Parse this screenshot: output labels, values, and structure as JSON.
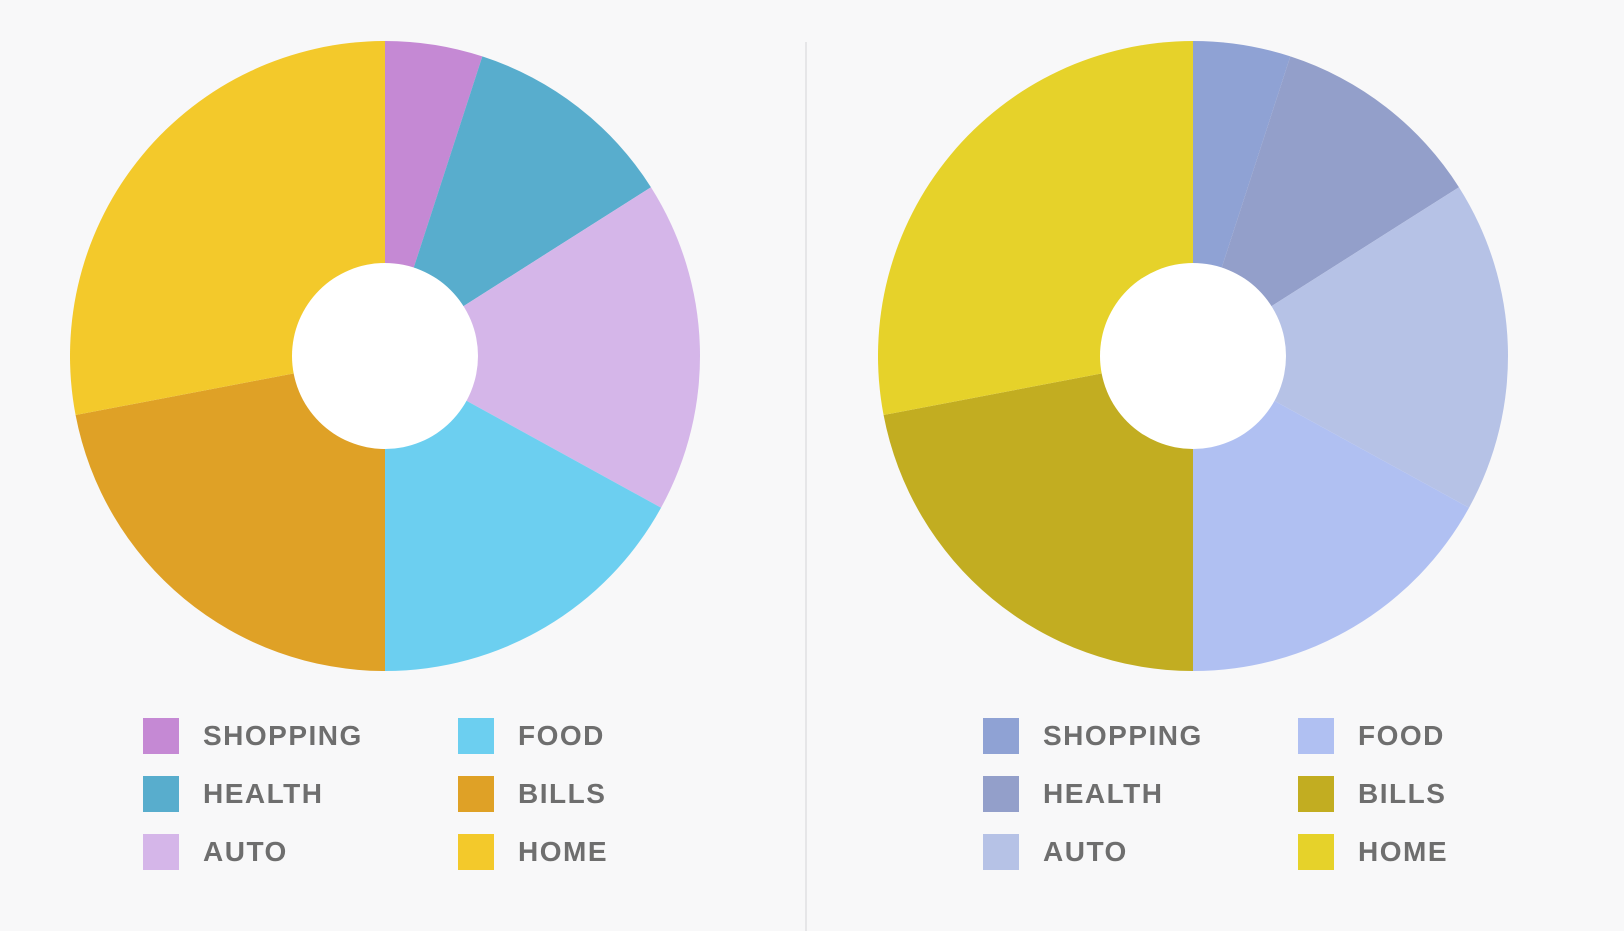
{
  "chart_data": [
    {
      "type": "pie",
      "style": "donut",
      "slices": [
        {
          "label": "SHOPPING",
          "value": 5,
          "color": "#c589d4"
        },
        {
          "label": "HEALTH",
          "value": 11,
          "color": "#58adcd"
        },
        {
          "label": "AUTO",
          "value": 17,
          "color": "#d5b6e9"
        },
        {
          "label": "FOOD",
          "value": 17,
          "color": "#6ccff0"
        },
        {
          "label": "BILLS",
          "value": 22,
          "color": "#dfa126"
        },
        {
          "label": "HOME",
          "value": 28,
          "color": "#f3c92b"
        }
      ],
      "legend": {
        "placement": "bottom",
        "columns": [
          [
            "SHOPPING",
            "HEALTH",
            "AUTO"
          ],
          [
            "FOOD",
            "BILLS",
            "HOME"
          ]
        ]
      }
    },
    {
      "type": "pie",
      "style": "donut",
      "slices": [
        {
          "label": "SHOPPING",
          "value": 5,
          "color": "#8fa2d4"
        },
        {
          "label": "HEALTH",
          "value": 11,
          "color": "#939fca"
        },
        {
          "label": "AUTO",
          "value": 17,
          "color": "#b6c2e6"
        },
        {
          "label": "FOOD",
          "value": 17,
          "color": "#b0c0f2"
        },
        {
          "label": "BILLS",
          "value": 22,
          "color": "#c2ad21"
        },
        {
          "label": "HOME",
          "value": 28,
          "color": "#e6d22a"
        }
      ],
      "legend": {
        "placement": "bottom",
        "columns": [
          [
            "SHOPPING",
            "HEALTH",
            "AUTO"
          ],
          [
            "FOOD",
            "BILLS",
            "HOME"
          ]
        ]
      }
    }
  ],
  "colors": {
    "background": "#f8f8f9",
    "hole": "#ffffff",
    "divider": "#e6e6e8",
    "legend_text": "#6e6e6e"
  }
}
